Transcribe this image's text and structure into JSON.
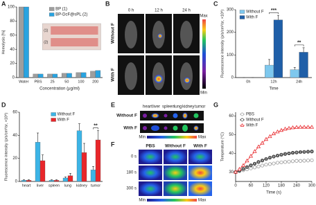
{
  "chart_data": [
    {
      "panel": "A",
      "type": "bar",
      "ylabel": "Hemolysis [%]",
      "xlabel": "Concentration (μg/ml)",
      "categories": [
        "Water",
        "PBS",
        "25",
        "50",
        "100",
        "200"
      ],
      "series": [
        {
          "name": "BP (1)",
          "color": "#9e9e9e",
          "values": [
            100,
            5,
            5,
            6,
            7,
            9
          ]
        },
        {
          "name": "BP-DcF@sPL (2)",
          "color": "#29a3e0",
          "values": [
            100,
            5,
            5,
            6,
            7,
            10
          ]
        }
      ],
      "ylim": [
        0,
        100
      ],
      "yticks": [
        0,
        20,
        40,
        60,
        80,
        100
      ],
      "legend": "upper right",
      "inset_labels": [
        "(1)",
        "(2)"
      ]
    },
    {
      "panel": "C",
      "type": "bar",
      "ylabel": "Fluorescence intensity (p/s/cm²/sr, ×10⁸)",
      "xlabel": "Time",
      "categories": [
        "0h",
        "12h",
        "24h"
      ],
      "series": [
        {
          "name": "Without F",
          "color": "#7ec8ee",
          "values": [
            0,
            55,
            35
          ],
          "errors": [
            0,
            25,
            10
          ]
        },
        {
          "name": "With F",
          "color": "#1f5fa8",
          "values": [
            0,
            255,
            112
          ],
          "errors": [
            0,
            20,
            20
          ]
        }
      ],
      "ylim": [
        0,
        300
      ],
      "yticks": [
        0,
        100,
        200,
        300
      ],
      "legend": "upper left",
      "annotations": [
        {
          "text": "***",
          "category": "12h"
        },
        {
          "text": "**",
          "category": "24h"
        }
      ]
    },
    {
      "panel": "D",
      "type": "bar",
      "ylabel": "Fluorescence intensity (p/s/cm²/sr, ×10⁸)",
      "categories": [
        "heart",
        "liver",
        "spleen",
        "lung",
        "kidney",
        "tumor"
      ],
      "series": [
        {
          "name": "Without F",
          "color": "#3cb4e6",
          "values": [
            1,
            34,
            1,
            3,
            44,
            10
          ],
          "errors": [
            0.5,
            8,
            0.5,
            1,
            6,
            3
          ]
        },
        {
          "name": "With F",
          "color": "#e8262a",
          "values": [
            1,
            18,
            1,
            5,
            25,
            36
          ],
          "errors": [
            0.5,
            5,
            0.5,
            2,
            8,
            8
          ]
        }
      ],
      "ylim": [
        0,
        60
      ],
      "yticks": [
        0,
        20,
        40,
        60
      ],
      "legend": "upper right",
      "annotations": [
        {
          "text": "**",
          "category": "tumor"
        }
      ]
    },
    {
      "panel": "G",
      "type": "line",
      "ylabel": "Temperature (°C)",
      "xlabel": "Time (s)",
      "x": [
        0,
        15,
        30,
        45,
        60,
        75,
        90,
        105,
        120,
        135,
        150,
        165,
        180,
        195,
        210,
        225,
        240,
        255,
        270,
        285,
        300
      ],
      "series": [
        {
          "name": "PBS",
          "color": "#999999",
          "marker": "circle",
          "values": [
            30,
            30.5,
            31,
            31.5,
            32,
            32.5,
            33,
            33.5,
            34,
            34.3,
            34.6,
            35,
            35.2,
            35.4,
            35.6,
            35.8,
            36,
            36,
            36.1,
            36.2,
            36.3
          ]
        },
        {
          "name": "Without F",
          "color": "#333333",
          "marker": "square",
          "values": [
            30,
            30.8,
            31.7,
            32.7,
            33.6,
            34.5,
            35.4,
            36.2,
            37,
            37.7,
            38.3,
            38.8,
            39.3,
            39.7,
            40,
            40.3,
            40.5,
            40.7,
            40.8,
            40.9,
            41
          ]
        },
        {
          "name": "With F",
          "color": "#e8262a",
          "marker": "triangle",
          "values": [
            30,
            31.5,
            33.5,
            36,
            38.5,
            41,
            43.5,
            45.5,
            47.5,
            49,
            50.5,
            51.5,
            52.3,
            53,
            53.4,
            53.7,
            53.9,
            54,
            54,
            54,
            54
          ]
        }
      ],
      "xlim": [
        0,
        300
      ],
      "xticks": [
        0,
        60,
        120,
        180,
        240,
        300
      ],
      "ylim": [
        25,
        62
      ],
      "yticks": [
        30,
        40,
        50,
        60
      ],
      "legend": "upper left"
    }
  ],
  "panels": {
    "B": {
      "label": "B",
      "columns": [
        "0 h",
        "12 h",
        "24 h"
      ],
      "rows": [
        "Without F",
        "With F"
      ],
      "scale": [
        "Max",
        "Min"
      ]
    },
    "E": {
      "label": "E",
      "organs": [
        "heart",
        "liver",
        "spleen",
        "lung",
        "kidney",
        "tumor"
      ],
      "rows": [
        "Without F",
        "With F"
      ],
      "scale": [
        "Min",
        "Max"
      ]
    },
    "F": {
      "label": "F",
      "columns": [
        "PBS",
        "Without F",
        "With F"
      ],
      "rows": [
        "0 s",
        "180 s",
        "300 s"
      ],
      "scale": [
        "Min",
        "Max"
      ]
    }
  }
}
